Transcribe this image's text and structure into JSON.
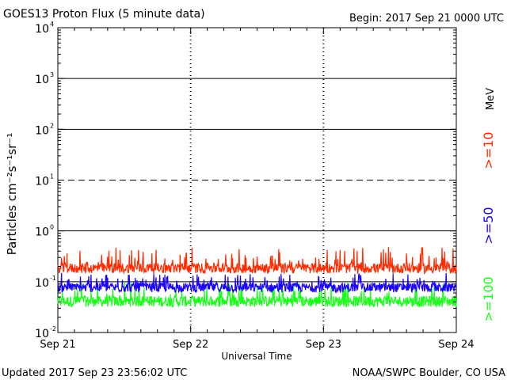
{
  "chart_data": {
    "type": "line",
    "title": "GOES13 Proton Flux (5 minute data)",
    "begin_label": "Begin: 2017 Sep 21 0000 UTC",
    "ylabel": "Particles cm⁻²s⁻¹sr⁻¹",
    "xlabel": "Universal Time",
    "units_label": "MeV",
    "y_scale": "log",
    "ylim": [
      0.01,
      10000
    ],
    "y_ticks": [
      {
        "value": 0.01,
        "base": "10",
        "exp": "-2"
      },
      {
        "value": 0.1,
        "base": "10",
        "exp": "-1"
      },
      {
        "value": 1,
        "base": "10",
        "exp": "0"
      },
      {
        "value": 10,
        "base": "10",
        "exp": "1"
      },
      {
        "value": 100,
        "base": "10",
        "exp": "2"
      },
      {
        "value": 1000,
        "base": "10",
        "exp": "3"
      },
      {
        "value": 10000,
        "base": "10",
        "exp": "4"
      }
    ],
    "xlim": [
      "2017-09-21 00:00",
      "2017-09-24 00:00"
    ],
    "x_ticks": [
      "Sep 21",
      "Sep 22",
      "Sep 23",
      "Sep 24"
    ],
    "threshold_lines": [
      {
        "value": 10,
        "style": "dashed"
      },
      {
        "value": 1,
        "style": "solid"
      },
      {
        "value": 0.1,
        "style": "solid"
      },
      {
        "value": 100,
        "style": "solid"
      },
      {
        "value": 1000,
        "style": "solid"
      }
    ],
    "series": [
      {
        "name": ">=10",
        "color": "#ff2a00",
        "baseline": 0.18,
        "min": 0.13,
        "max": 0.48
      },
      {
        "name": ">=50",
        "color": "#1a00ff",
        "baseline": 0.075,
        "min": 0.045,
        "max": 0.15
      },
      {
        "name": ">=100",
        "color": "#1aff1a",
        "baseline": 0.04,
        "min": 0.024,
        "max": 0.1
      }
    ],
    "grid": "threshold lines and day separators"
  },
  "footer": {
    "updated": "Updated 2017 Sep 23 23:56:02 UTC",
    "credit": "NOAA/SWPC Boulder, CO USA"
  }
}
